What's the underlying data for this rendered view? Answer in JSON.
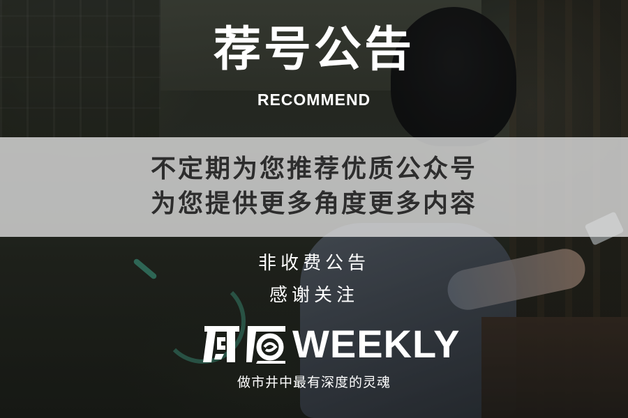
{
  "header": {
    "title": "荐号公告",
    "subtitle": "RECOMMEND"
  },
  "band": {
    "line1": "不定期为您推荐优质公众号",
    "line2": "为您提供更多角度更多内容"
  },
  "notes": {
    "line1": "非收费公告",
    "line2": "感谢关注"
  },
  "logo": {
    "chinese_mark": "鳳凰",
    "word": "WEEKLY"
  },
  "slogan": "做市井中最有深度的灵魂",
  "colors": {
    "band_bg": "#dedede",
    "band_text": "#2d2d2d",
    "text": "#ffffff",
    "accent_green": "#46b496"
  }
}
